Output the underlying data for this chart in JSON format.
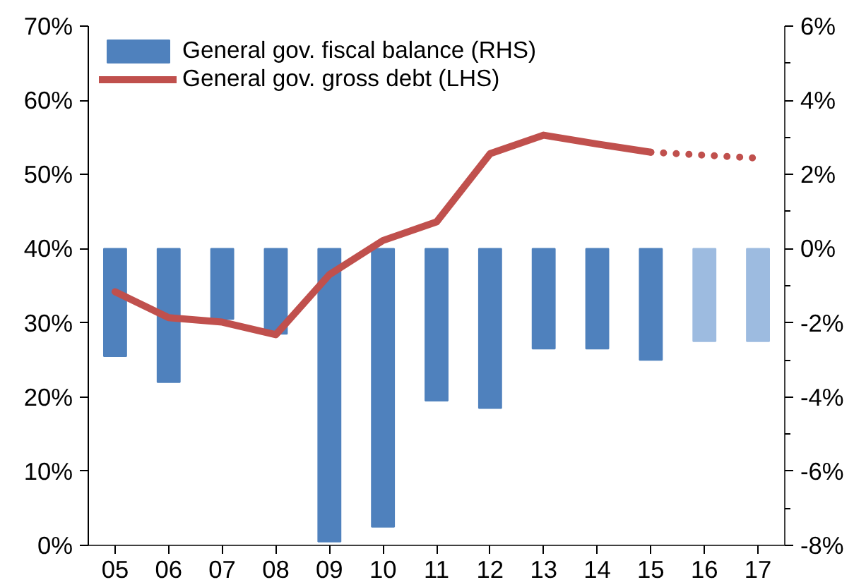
{
  "chart_data": {
    "type": "bar",
    "categories": [
      "05",
      "06",
      "07",
      "08",
      "09",
      "10",
      "11",
      "12",
      "13",
      "14",
      "15",
      "16",
      "17"
    ],
    "series": [
      {
        "name": "General gov. fiscal balance (RHS)",
        "axis": "y2",
        "color": "#4f81bd",
        "colors": [
          "#4f81bd",
          "#4f81bd",
          "#4f81bd",
          "#4f81bd",
          "#4f81bd",
          "#4f81bd",
          "#4f81bd",
          "#4f81bd",
          "#4f81bd",
          "#4f81bd",
          "#4f81bd",
          "#9dbbe0",
          "#9dbbe0"
        ],
        "values": [
          -2.9,
          -3.6,
          -1.9,
          -2.3,
          -7.9,
          -7.5,
          -4.1,
          -4.3,
          -2.7,
          -2.7,
          -3.0,
          -2.5,
          -2.5
        ]
      },
      {
        "name": "General gov. gross debt (LHS)",
        "type": "line",
        "color": "#c0504d",
        "line_style": "solid",
        "values": [
          34.2,
          30.7,
          30.1,
          28.4,
          36.5,
          41.1,
          43.6,
          52.8,
          55.3,
          54.1,
          53.0,
          null,
          null
        ]
      },
      {
        "type": "line",
        "color": "#c0504d",
        "line_style": "dotted",
        "values": [
          null,
          null,
          null,
          null,
          null,
          null,
          null,
          null,
          null,
          null,
          53.0,
          52.6,
          52.2
        ]
      }
    ],
    "ylim": [
      0,
      70
    ],
    "yticks": [
      {
        "value": 0,
        "label": "0%"
      },
      {
        "value": 10,
        "label": "10%"
      },
      {
        "value": 20,
        "label": "20%"
      },
      {
        "value": 30,
        "label": "30%"
      },
      {
        "value": 40,
        "label": "40%"
      },
      {
        "value": 50,
        "label": "50%"
      },
      {
        "value": 60,
        "label": "60%"
      },
      {
        "value": 70,
        "label": "70%"
      }
    ],
    "y2lim": [
      -8,
      6
    ],
    "y2ticks": [
      {
        "value": -8,
        "label": "-8%"
      },
      {
        "value": -6,
        "label": "-6%"
      },
      {
        "value": -4,
        "label": "-4%"
      },
      {
        "value": -2,
        "label": "-2%"
      },
      {
        "value": 0,
        "label": "0%"
      },
      {
        "value": 2,
        "label": "2%"
      },
      {
        "value": 4,
        "label": "4%"
      },
      {
        "value": 6,
        "label": "6%"
      }
    ],
    "grid": false,
    "legend": "top left"
  }
}
